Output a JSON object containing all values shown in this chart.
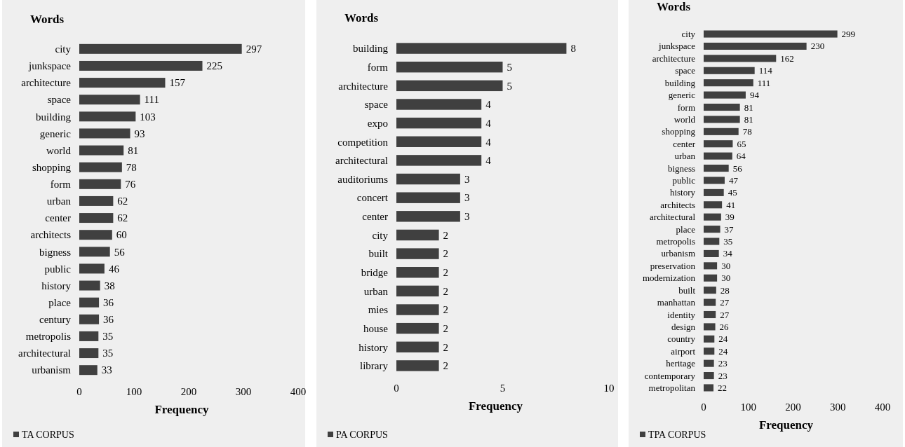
{
  "chart_data": [
    {
      "type": "bar",
      "orientation": "horizontal",
      "ylabel": "Words",
      "xlabel": "Frequency",
      "categories": [
        "city",
        "junkspace",
        "architecture",
        "space",
        "building",
        "generic",
        "world",
        "shopping",
        "form",
        "urban",
        "center",
        "architects",
        "bigness",
        "public",
        "history",
        "place",
        "century",
        "metropolis",
        "architectural",
        "urbanism"
      ],
      "series": [
        {
          "name": "TA CORPUS",
          "color": "#404040",
          "values": [
            297,
            225,
            157,
            111,
            103,
            93,
            81,
            78,
            76,
            62,
            62,
            60,
            56,
            46,
            38,
            36,
            36,
            35,
            35,
            33
          ]
        }
      ],
      "xlim": [
        0,
        400
      ],
      "xticks": [
        0,
        100,
        200,
        300,
        400
      ],
      "data_labels": true,
      "legend": "bottom left"
    },
    {
      "type": "bar",
      "orientation": "horizontal",
      "ylabel": "Words",
      "xlabel": "Frequency",
      "categories": [
        "building",
        "form",
        "architecture",
        "space",
        "expo",
        "competition",
        "architectural",
        "auditoriums",
        "concert",
        "center",
        "city",
        "built",
        "bridge",
        "urban",
        "mies",
        "house",
        "history",
        "library"
      ],
      "series": [
        {
          "name": "PA CORPUS",
          "color": "#404040",
          "values": [
            8,
            5,
            5,
            4,
            4,
            4,
            4,
            3,
            3,
            3,
            2,
            2,
            2,
            2,
            2,
            2,
            2,
            2
          ]
        }
      ],
      "xlim": [
        0,
        10
      ],
      "xticks": [
        0,
        5,
        10
      ],
      "data_labels": true,
      "legend": "bottom left"
    },
    {
      "type": "bar",
      "orientation": "horizontal",
      "ylabel": "Words",
      "xlabel": "Frequency",
      "categories": [
        "city",
        "junkspace",
        "architecture",
        "space",
        "building",
        "generic",
        "form",
        "world",
        "shopping",
        "center",
        "urban",
        "bigness",
        "public",
        "history",
        "architects",
        "architectural",
        "place",
        "metropolis",
        "urbanism",
        "preservation",
        "modernization",
        "built",
        "manhattan",
        "identity",
        "design",
        "country",
        "airport",
        "heritage",
        "contemporary",
        "metropolitan"
      ],
      "series": [
        {
          "name": "TPA CORPUS",
          "color": "#404040",
          "values": [
            299,
            230,
            162,
            114,
            111,
            94,
            81,
            81,
            78,
            65,
            64,
            56,
            47,
            45,
            41,
            39,
            37,
            35,
            34,
            30,
            30,
            28,
            27,
            27,
            26,
            24,
            24,
            23,
            23,
            22
          ]
        }
      ],
      "xlim": [
        0,
        400
      ],
      "xticks": [
        0,
        100,
        200,
        300,
        400
      ],
      "data_labels": true,
      "legend": "bottom left"
    }
  ]
}
